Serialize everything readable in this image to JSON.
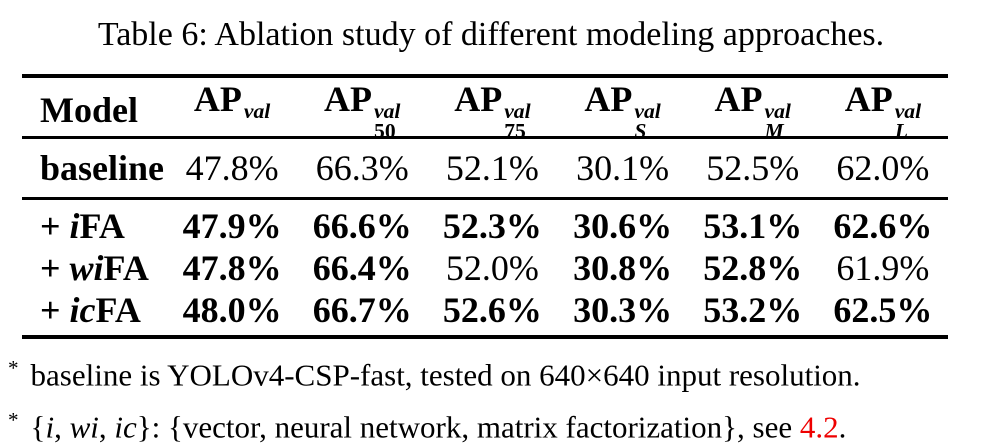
{
  "caption": "Table 6: Ablation study of different modeling approaches.",
  "colors": {
    "text": "#000000",
    "background": "#ffffff",
    "link": "#ee0000"
  },
  "table": {
    "headers": [
      {
        "base": "Model",
        "sup": "",
        "sub": ""
      },
      {
        "base": "AP",
        "sup": "val",
        "sub": ""
      },
      {
        "base": "AP",
        "sup": "val",
        "sub": "50"
      },
      {
        "base": "AP",
        "sup": "val",
        "sub": "75"
      },
      {
        "base": "AP",
        "sup": "val",
        "sub": "S"
      },
      {
        "base": "AP",
        "sup": "val",
        "sub": "M"
      },
      {
        "base": "AP",
        "sup": "val",
        "sub": "L"
      }
    ],
    "rows": [
      {
        "label": {
          "prefix": "",
          "italic": "",
          "suffix": "baseline"
        },
        "values": [
          "47.8%",
          "66.3%",
          "52.1%",
          "30.1%",
          "52.5%",
          "62.0%"
        ],
        "bold": [
          false,
          false,
          false,
          false,
          false,
          false
        ]
      },
      {
        "label": {
          "prefix": "+ ",
          "italic": "i",
          "suffix": "FA"
        },
        "values": [
          "47.9%",
          "66.6%",
          "52.3%",
          "30.6%",
          "53.1%",
          "62.6%"
        ],
        "bold": [
          true,
          true,
          true,
          true,
          true,
          true
        ]
      },
      {
        "label": {
          "prefix": "+ ",
          "italic": "wi",
          "suffix": "FA"
        },
        "values": [
          "47.8%",
          "66.4%",
          "52.0%",
          "30.8%",
          "52.8%",
          "61.9%"
        ],
        "bold": [
          true,
          true,
          false,
          true,
          true,
          false
        ]
      },
      {
        "label": {
          "prefix": "+ ",
          "italic": "ic",
          "suffix": "FA"
        },
        "values": [
          "48.0%",
          "66.7%",
          "52.6%",
          "30.3%",
          "53.2%",
          "62.5%"
        ],
        "bold": [
          true,
          true,
          true,
          true,
          true,
          true
        ]
      }
    ]
  },
  "footnotes": [
    {
      "marker": "*",
      "parts": [
        {
          "text": "baseline is YOLOv4-CSP-fast, tested on 640×640 input resolution.",
          "style": "plain"
        }
      ]
    },
    {
      "marker": "*",
      "parts": [
        {
          "text": "{",
          "style": "plain"
        },
        {
          "text": "i",
          "style": "italic"
        },
        {
          "text": ", ",
          "style": "plain"
        },
        {
          "text": "wi",
          "style": "italic"
        },
        {
          "text": ", ",
          "style": "plain"
        },
        {
          "text": "ic",
          "style": "italic"
        },
        {
          "text": "}: {vector, neural network, matrix factorization}, see ",
          "style": "plain"
        },
        {
          "text": "4.2",
          "style": "link"
        },
        {
          "text": ".",
          "style": "plain"
        }
      ]
    }
  ]
}
